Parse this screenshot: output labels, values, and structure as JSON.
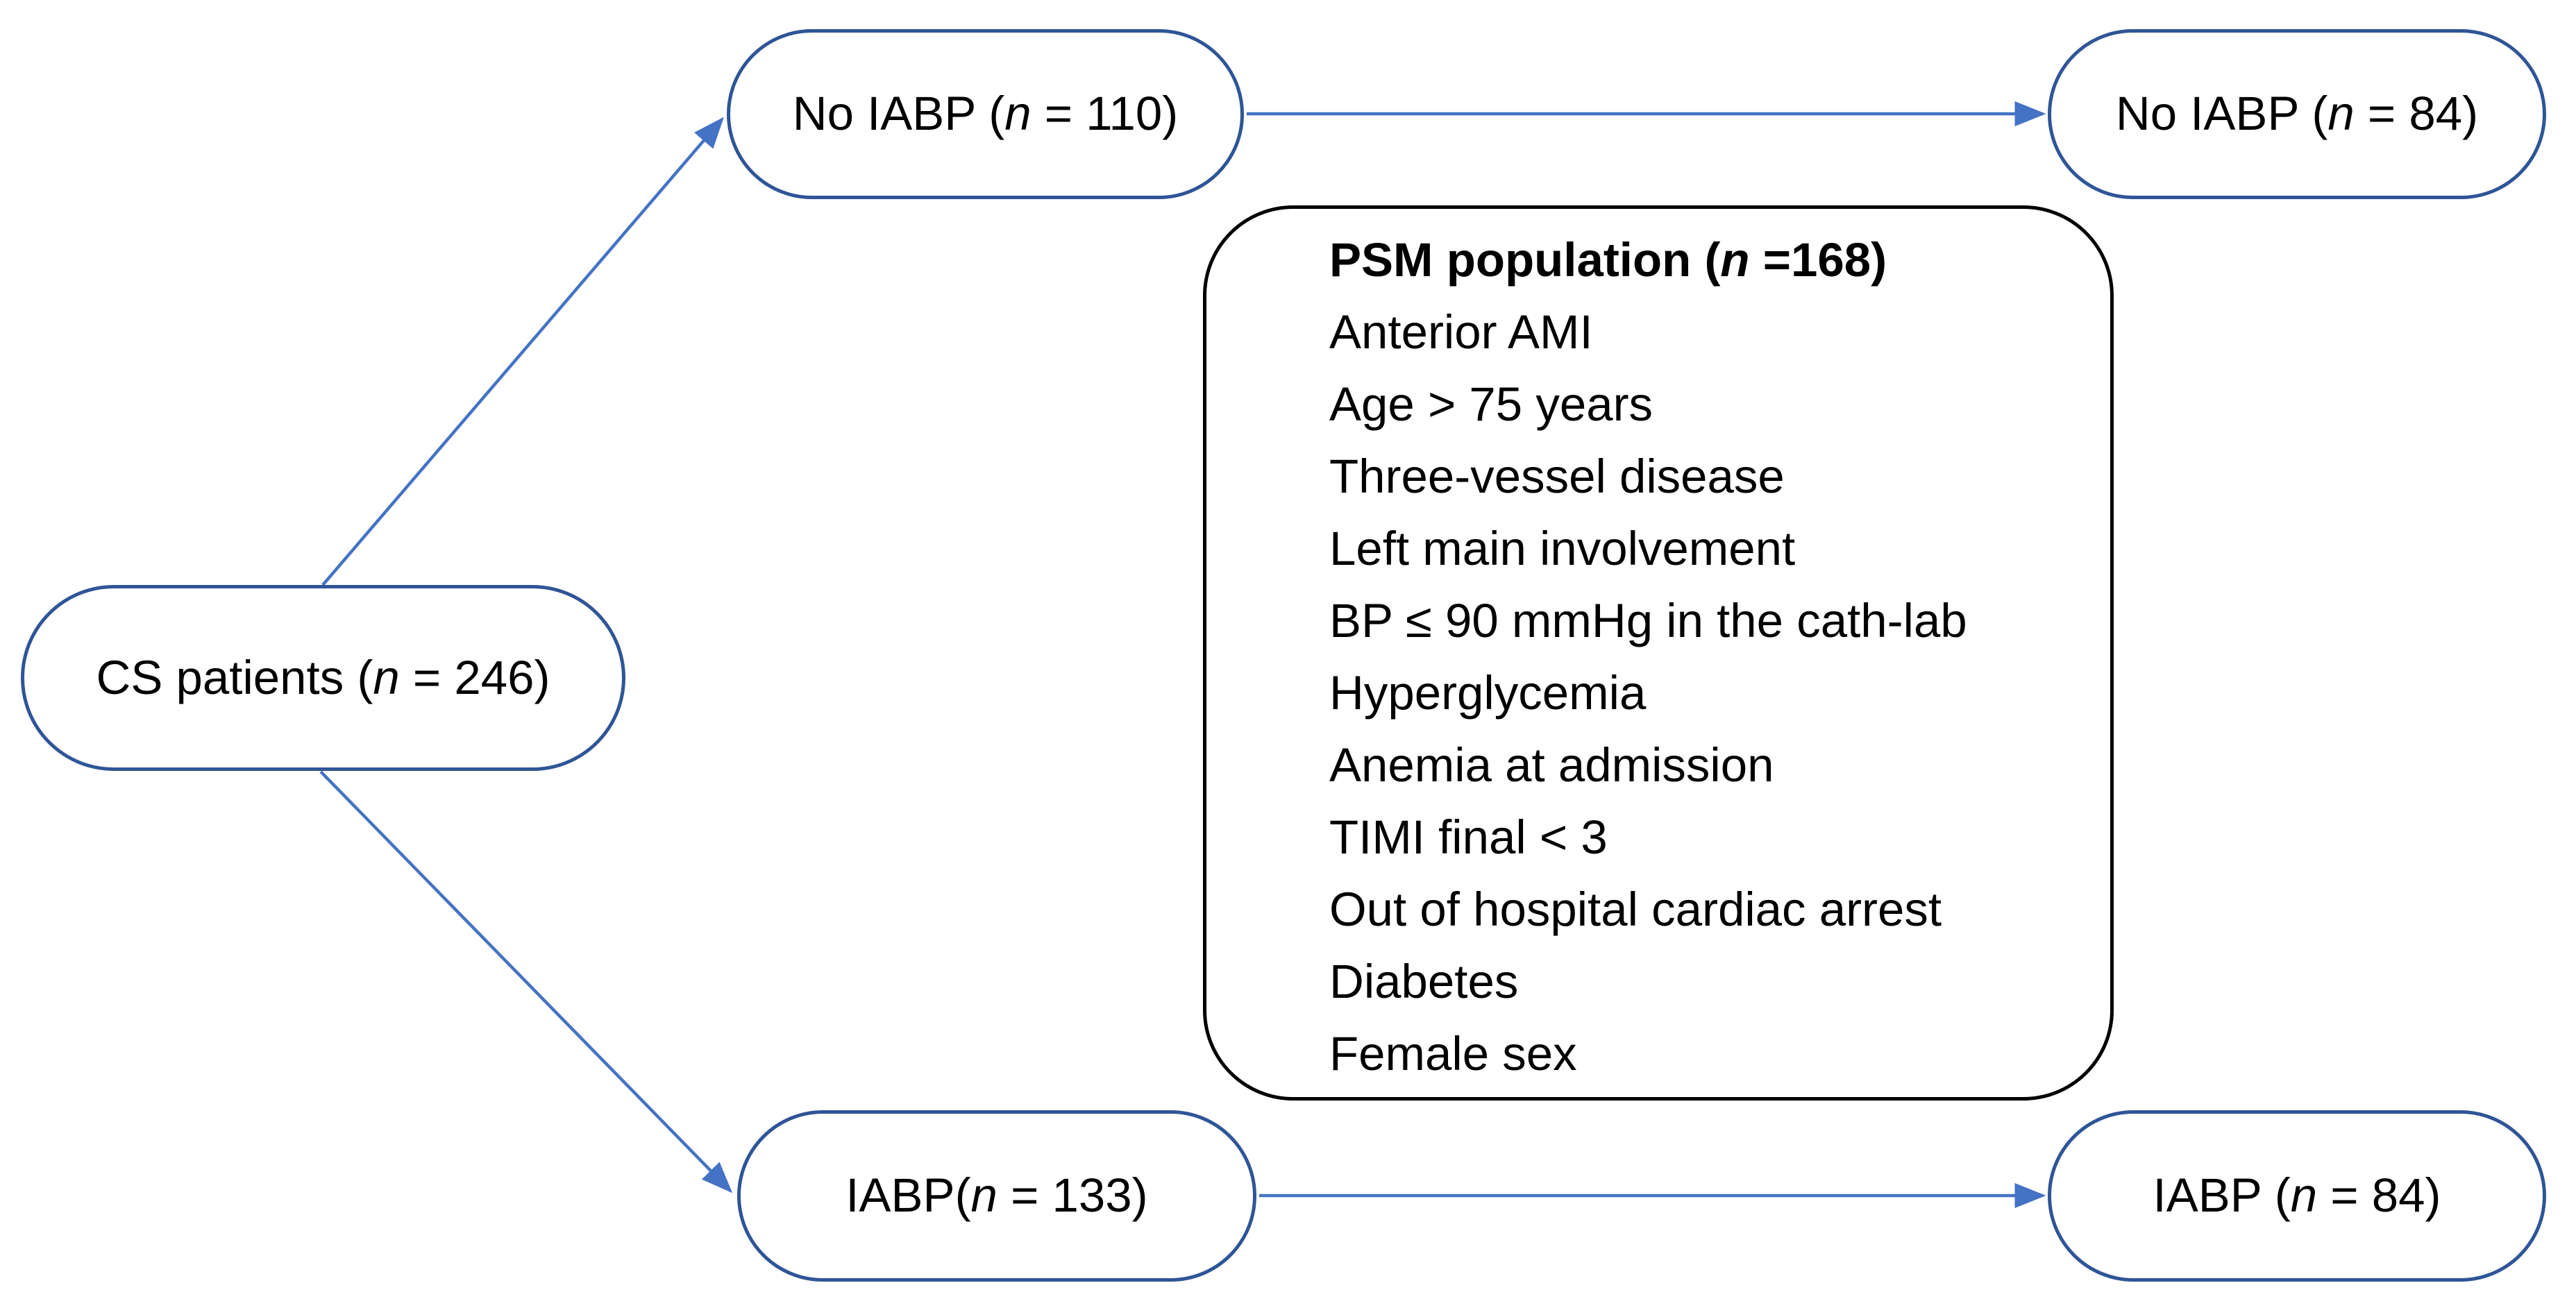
{
  "colors": {
    "background": "#FFFFFF",
    "pill_border": "#2F5597",
    "arrow": "#4472C4",
    "psm_border": "#000000",
    "text": "#000000"
  },
  "nodes": {
    "cs_patients": {
      "prefix": "CS patients (",
      "n_var": "n",
      "suffix": " = 246)"
    },
    "no_iabp_110": {
      "prefix": "No IABP (",
      "n_var": "n",
      "suffix": " = 110)"
    },
    "no_iabp_84": {
      "prefix": "No IABP (",
      "n_var": "n",
      "suffix": " = 84)"
    },
    "iabp_133": {
      "prefix": "IABP(",
      "n_var": "n",
      "suffix": " = 133)"
    },
    "iabp_84": {
      "prefix": "IABP (",
      "n_var": "n",
      "suffix": " = 84)"
    }
  },
  "psm": {
    "title_prefix": "PSM population (",
    "title_n": "n",
    "title_suffix": " =168)",
    "items": [
      "Anterior AMI",
      "Age > 75 years",
      "Three-vessel disease",
      "Left main involvement",
      "BP ≤ 90 mmHg in the cath-lab",
      "Hyperglycemia",
      "Anemia at admission",
      "TIMI final < 3",
      "Out of hospital cardiac arrest",
      "Diabetes",
      "Female sex"
    ]
  }
}
